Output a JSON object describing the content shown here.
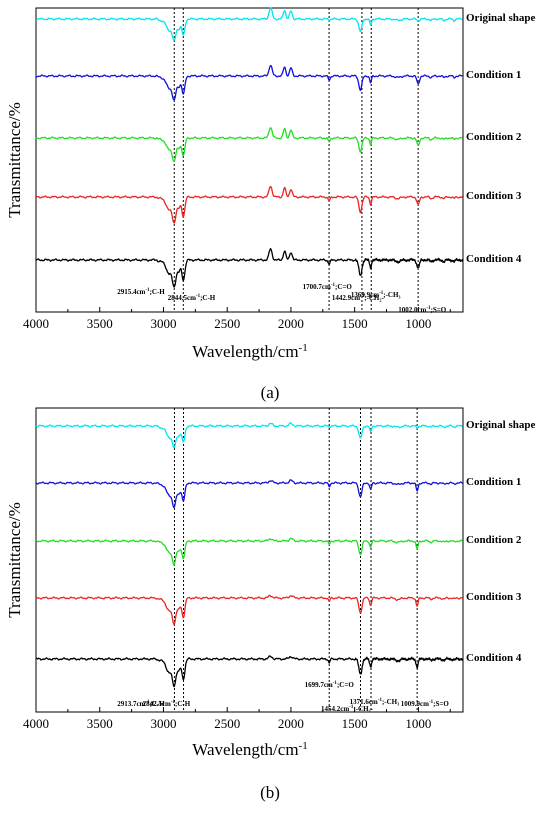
{
  "chart_data": [
    {
      "type": "line",
      "panel_label": "(a)",
      "xlabel": "Wavelength/cm",
      "xlabel_sup": "-1",
      "ylabel": "Transmittance/%",
      "xlim": [
        4000,
        650
      ],
      "x_ticks": [
        4000,
        3500,
        3000,
        2500,
        2000,
        1500,
        1000
      ],
      "series": [
        {
          "name": "Original shape",
          "color": "#00e5ee"
        },
        {
          "name": "Condition 1",
          "color": "#1010dd"
        },
        {
          "name": "Condition 2",
          "color": "#22dd22"
        },
        {
          "name": "Condition 3",
          "color": "#ee2222"
        },
        {
          "name": "Condition 4",
          "color": "#000000"
        }
      ],
      "reference_lines": [
        2915.4,
        2844.5,
        1700.7,
        1442.9,
        1369.9,
        1002.0
      ],
      "annotations": [
        {
          "text": "2915.4cm",
          "sup": "-1",
          "tail": ";C-H"
        },
        {
          "text": "2844.5cm",
          "sup": "-1",
          "tail": ";C-H"
        },
        {
          "text": "1700.7cm",
          "sup": "-1",
          "tail": ";C=O"
        },
        {
          "text": "1442.9cm",
          "sup": "-1",
          "tail": ";-CH₂-"
        },
        {
          "text": "1369.9cm",
          "sup": "-1",
          "tail": ";-CH₃"
        },
        {
          "text": "1002.0cm",
          "sup": "-1",
          "tail": ";S=O"
        }
      ]
    },
    {
      "type": "line",
      "panel_label": "(b)",
      "xlabel": "Wavelength/cm",
      "xlabel_sup": "-1",
      "ylabel": "Transmittance/%",
      "xlim": [
        4000,
        650
      ],
      "x_ticks": [
        4000,
        3500,
        3000,
        2500,
        2000,
        1500,
        1000
      ],
      "series": [
        {
          "name": "Original shape",
          "color": "#00e5ee"
        },
        {
          "name": "Condition 1",
          "color": "#1010dd"
        },
        {
          "name": "Condition 2",
          "color": "#22dd22"
        },
        {
          "name": "Condition 3",
          "color": "#ee2222"
        },
        {
          "name": "Condition 4",
          "color": "#000000"
        }
      ],
      "reference_lines": [
        2913.7,
        2842.5,
        1699.7,
        1454.2,
        1371.6,
        1009.9
      ],
      "annotations": [
        {
          "text": "2913.7cm",
          "sup": "-1",
          "tail": ";C-H"
        },
        {
          "text": "2842.5cm",
          "sup": "-1",
          "tail": ";C-H"
        },
        {
          "text": "1699.7cm",
          "sup": "-1",
          "tail": ";C=O"
        },
        {
          "text": "1454.2cm",
          "sup": "-1",
          "tail": ";-CH₂-"
        },
        {
          "text": "1371.6cm",
          "sup": "-1",
          "tail": ";-CH₃"
        },
        {
          "text": "1009.9cm",
          "sup": "-1",
          "tail": ";S=O"
        }
      ]
    }
  ]
}
